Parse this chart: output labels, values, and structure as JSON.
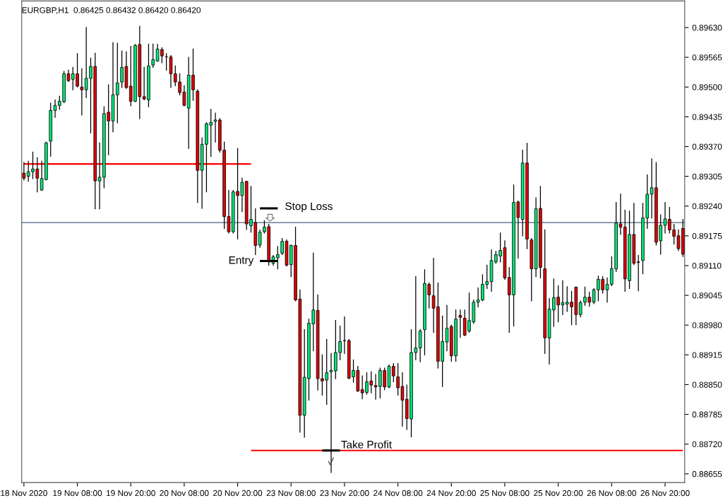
{
  "chart_data": {
    "type": "candlestick",
    "title": "EURGBP,H1  0.86425 0.86432 0.86420 0.86420",
    "categories": [
      "18 Nov 2020",
      null,
      null,
      null,
      null,
      null,
      null,
      null,
      null,
      null,
      null,
      null,
      "19 Nov 08:00",
      null,
      null,
      null,
      null,
      null,
      null,
      null,
      null,
      null,
      null,
      null,
      "19 Nov 20:00",
      null,
      null,
      null,
      null,
      null,
      null,
      null,
      null,
      null,
      null,
      null,
      "20 Nov 08:00",
      null,
      null,
      null,
      null,
      null,
      null,
      null,
      null,
      null,
      null,
      null,
      "20 Nov 20:00",
      null,
      null,
      null,
      null,
      null,
      null,
      null,
      null,
      null,
      null,
      null,
      "23 Nov 08:00",
      null,
      null,
      null,
      null,
      null,
      null,
      null,
      null,
      null,
      null,
      null,
      "23 Nov 20:00",
      null,
      null,
      null,
      null,
      null,
      null,
      null,
      null,
      null,
      null,
      null,
      "24 Nov 08:00",
      null,
      null,
      null,
      null,
      null,
      null,
      null,
      null,
      null,
      null,
      null,
      "24 Nov 20:00",
      null,
      null,
      null,
      null,
      null,
      null,
      null,
      null,
      null,
      null,
      null,
      "25 Nov 08:00",
      null,
      null,
      null,
      null,
      null,
      null,
      null,
      null,
      null,
      null,
      null,
      "25 Nov 20:00",
      null,
      null,
      null,
      null,
      null,
      null,
      null,
      null,
      null,
      null,
      null,
      "26 Nov 08:00",
      null,
      null,
      null,
      null,
      null,
      null,
      null,
      null,
      null,
      null,
      null,
      "26 Nov 20:00",
      null,
      null,
      null,
      null
    ],
    "colors": [
      "#e00000",
      "#00e676",
      "#00e676",
      "#e00000",
      "#00e676",
      "#00e676",
      "#00e676",
      "#00e676",
      "#00e676",
      "#00e676",
      "#e00000",
      "#00e676",
      "#e00000",
      "#e00000",
      "#00e676",
      "#00e676",
      "#e00000",
      "#00e676",
      "#00e676",
      "#e00000",
      "#00e676",
      "#00e676",
      "#00e676",
      "#e00000",
      "#e00000",
      "#00e676",
      "#e00000",
      "#e00000",
      "#00e676",
      "#00e676",
      "#00e676",
      "#e00000",
      "#000000",
      "#e00000",
      "#e00000",
      "#e00000",
      "#e00000",
      "#00e676",
      "#e00000",
      "#e00000",
      "#00e676",
      "#00e676",
      "#00e676",
      "#00e676",
      "#e00000",
      "#e00000",
      "#e00000",
      "#00e676",
      "#e00000",
      "#00e676",
      "#e00000",
      "#00e676",
      "#e00000",
      "#00e676",
      "#00e676",
      "#e00000",
      "#00e676",
      "#00e676",
      "#00e676",
      "#e00000",
      "#00e676",
      "#e00000",
      "#e00000",
      "#00e676",
      "#00e676",
      "#00e676",
      "#e00000",
      "#e00000",
      "#00e676",
      "#00e676",
      "#00e676",
      "#00e676",
      "#000000",
      "#e00000",
      "#00e676",
      "#e00000",
      "#e00000",
      "#00e676",
      "#e00000",
      "#e00000",
      "#00e676",
      "#e00000",
      "#00e676",
      "#e00000",
      "#e00000",
      "#e00000",
      "#e00000",
      "#00e676",
      "#00e676",
      "#00e676",
      "#00e676",
      "#e00000",
      "#e00000",
      "#e00000",
      "#00e676",
      "#00e676",
      "#e00000",
      "#00e676",
      "#e00000",
      "#e00000",
      "#00e676",
      "#00e676",
      "#00e676",
      "#00e676",
      "#00e676",
      "#00e676",
      "#00e676",
      "#00e676",
      "#e00000",
      "#e00000",
      "#00e676",
      "#e00000",
      "#00e676",
      "#e00000",
      "#e00000",
      "#00e676",
      "#e00000",
      "#e00000",
      "#00e676",
      "#00e676",
      "#e00000",
      "#00e676",
      "#00e676",
      "#e00000",
      "#e00000",
      "#00e676",
      "#00e676",
      "#e00000",
      "#00e676",
      "#00e676",
      "#e00000",
      "#00e676",
      "#00e676",
      "#00e676",
      "#e00000",
      "#e00000",
      "#00e676",
      "#e00000",
      "#e00000",
      "#00e676",
      "#00e676",
      "#00e676",
      "#e00000",
      "#00e676",
      "#00e676",
      "#e00000",
      "#e00000",
      "#e00000",
      "#e00000"
    ],
    "ohlc": [
      [
        0.89312,
        0.89335,
        0.89297,
        0.89301
      ],
      [
        0.89305,
        0.89338,
        0.89294,
        0.89315
      ],
      [
        0.89315,
        0.89358,
        0.893,
        0.89321
      ],
      [
        0.89321,
        0.89346,
        0.89271,
        0.89301
      ],
      [
        0.89275,
        0.89338,
        0.89274,
        0.893
      ],
      [
        0.89298,
        0.8938,
        0.89297,
        0.89378
      ],
      [
        0.89382,
        0.89465,
        0.89349,
        0.89449
      ],
      [
        0.89449,
        0.89472,
        0.89434,
        0.8946
      ],
      [
        0.8946,
        0.8948,
        0.89451,
        0.89469
      ],
      [
        0.89468,
        0.89534,
        0.89466,
        0.89529
      ],
      [
        0.89529,
        0.89537,
        0.89512,
        0.89514
      ],
      [
        0.89517,
        0.89543,
        0.89494,
        0.89529
      ],
      [
        0.89529,
        0.89573,
        0.895,
        0.89502
      ],
      [
        0.895,
        0.8954,
        0.89439,
        0.89494
      ],
      [
        0.89494,
        0.8963,
        0.89477,
        0.89519
      ],
      [
        0.89519,
        0.89563,
        0.894,
        0.89545
      ],
      [
        0.89545,
        0.89574,
        0.89234,
        0.89295
      ],
      [
        0.89295,
        0.89378,
        0.89234,
        0.89303
      ],
      [
        0.89303,
        0.89457,
        0.8928,
        0.89442
      ],
      [
        0.89445,
        0.89505,
        0.89352,
        0.89426
      ],
      [
        0.89426,
        0.89597,
        0.89402,
        0.89483
      ],
      [
        0.89483,
        0.89596,
        0.89422,
        0.89509
      ],
      [
        0.89511,
        0.89579,
        0.89499,
        0.89543
      ],
      [
        0.89545,
        0.89577,
        0.89497,
        0.89499
      ],
      [
        0.89502,
        0.89589,
        0.89459,
        0.89469
      ],
      [
        0.89469,
        0.89593,
        0.89468,
        0.89591
      ],
      [
        0.89593,
        0.89633,
        0.89431,
        0.89479
      ],
      [
        0.89479,
        0.89543,
        0.89472,
        0.89474
      ],
      [
        0.89472,
        0.89594,
        0.89457,
        0.89546
      ],
      [
        0.89548,
        0.89594,
        0.89543,
        0.8956
      ],
      [
        0.89557,
        0.89593,
        0.89556,
        0.89583
      ],
      [
        0.89582,
        0.89586,
        0.89553,
        0.89568
      ],
      [
        0.89566,
        0.89573,
        0.89537,
        0.89566
      ],
      [
        0.89566,
        0.89569,
        0.89499,
        0.89529
      ],
      [
        0.89529,
        0.89546,
        0.89503,
        0.89511
      ],
      [
        0.89511,
        0.89529,
        0.89483,
        0.89488
      ],
      [
        0.89489,
        0.89503,
        0.89459,
        0.8946
      ],
      [
        0.89454,
        0.89565,
        0.89366,
        0.89526
      ],
      [
        0.89526,
        0.89583,
        0.89471,
        0.89494
      ],
      [
        0.89491,
        0.89494,
        0.89248,
        0.89318
      ],
      [
        0.89318,
        0.89389,
        0.89235,
        0.89375
      ],
      [
        0.89375,
        0.89422,
        0.89271,
        0.8942
      ],
      [
        0.89417,
        0.89451,
        0.89348,
        0.89423
      ],
      [
        0.89425,
        0.89443,
        0.8938,
        0.89428
      ],
      [
        0.89428,
        0.89431,
        0.89358,
        0.89362
      ],
      [
        0.89362,
        0.8938,
        0.89191,
        0.89217
      ],
      [
        0.89217,
        0.89274,
        0.89181,
        0.89184
      ],
      [
        0.89184,
        0.89274,
        0.89181,
        0.89271
      ],
      [
        0.89272,
        0.89366,
        0.89168,
        0.89263
      ],
      [
        0.89263,
        0.89301,
        0.89228,
        0.89292
      ],
      [
        0.89294,
        0.89294,
        0.89189,
        0.89201
      ],
      [
        0.89197,
        0.89283,
        0.89183,
        0.89211
      ],
      [
        0.89204,
        0.89234,
        0.89134,
        0.89154
      ],
      [
        0.89155,
        0.89188,
        0.8915,
        0.89183
      ],
      [
        0.89184,
        0.89208,
        0.89181,
        0.89194
      ],
      [
        0.89195,
        0.892,
        0.89111,
        0.89118
      ],
      [
        0.89115,
        0.89132,
        0.89111,
        0.89129
      ],
      [
        0.89127,
        0.89152,
        0.89103,
        0.89134
      ],
      [
        0.89137,
        0.89169,
        0.89134,
        0.89163
      ],
      [
        0.89163,
        0.89166,
        0.89109,
        0.89111
      ],
      [
        0.89112,
        0.89155,
        0.89086,
        0.89154
      ],
      [
        0.89154,
        0.89194,
        0.89033,
        0.89035
      ],
      [
        0.89037,
        0.89057,
        0.88746,
        0.88783
      ],
      [
        0.88783,
        0.8897,
        0.88735,
        0.88866
      ],
      [
        0.88863,
        0.88993,
        0.88816,
        0.88984
      ],
      [
        0.88983,
        0.89137,
        0.88924,
        0.89013
      ],
      [
        0.89012,
        0.89046,
        0.88838,
        0.88863
      ],
      [
        0.88863,
        0.88915,
        0.88827,
        0.88858
      ],
      [
        0.8886,
        0.88949,
        0.88807,
        0.88876
      ],
      [
        0.88878,
        0.88918,
        0.88658,
        0.88881
      ],
      [
        0.8888,
        0.8899,
        0.88863,
        0.8892
      ],
      [
        0.8892,
        0.88978,
        0.88904,
        0.88944
      ],
      [
        0.88946,
        0.88998,
        0.88918,
        0.88946
      ],
      [
        0.88946,
        0.88949,
        0.88863,
        0.88864
      ],
      [
        0.88867,
        0.88904,
        0.88855,
        0.88881
      ],
      [
        0.88881,
        0.8889,
        0.88835,
        0.88836
      ],
      [
        0.88839,
        0.88869,
        0.88819,
        0.88832
      ],
      [
        0.88833,
        0.88876,
        0.88829,
        0.88856
      ],
      [
        0.88858,
        0.88878,
        0.88832,
        0.88849
      ],
      [
        0.88848,
        0.88872,
        0.88818,
        0.88845
      ],
      [
        0.88846,
        0.88886,
        0.88821,
        0.88881
      ],
      [
        0.88881,
        0.88886,
        0.88839,
        0.88845
      ],
      [
        0.88845,
        0.88893,
        0.88843,
        0.8889
      ],
      [
        0.8889,
        0.88896,
        0.88856,
        0.88869
      ],
      [
        0.88867,
        0.88896,
        0.88827,
        0.88843
      ],
      [
        0.88846,
        0.88876,
        0.88759,
        0.88816
      ],
      [
        0.88818,
        0.88849,
        0.88752,
        0.88776
      ],
      [
        0.88775,
        0.8897,
        0.88736,
        0.8892
      ],
      [
        0.8892,
        0.89086,
        0.88904,
        0.8893
      ],
      [
        0.8893,
        0.8897,
        0.889,
        0.88967
      ],
      [
        0.8897,
        0.89101,
        0.88915,
        0.89071
      ],
      [
        0.89069,
        0.89072,
        0.89017,
        0.89046
      ],
      [
        0.89044,
        0.89126,
        0.88964,
        0.89017
      ],
      [
        0.8902,
        0.89072,
        0.88886,
        0.88901
      ],
      [
        0.88901,
        0.89,
        0.88846,
        0.88944
      ],
      [
        0.88943,
        0.89023,
        0.88924,
        0.88973
      ],
      [
        0.88977,
        0.8898,
        0.88901,
        0.88913
      ],
      [
        0.88913,
        0.89013,
        0.88901,
        0.88993
      ],
      [
        0.89001,
        0.89013,
        0.88953,
        0.88997
      ],
      [
        0.88995,
        0.89013,
        0.88957,
        0.88958
      ],
      [
        0.88967,
        0.8905,
        0.88964,
        0.8899
      ],
      [
        0.88987,
        0.89035,
        0.88984,
        0.8903
      ],
      [
        0.8903,
        0.89061,
        0.8902,
        0.89035
      ],
      [
        0.89035,
        0.8909,
        0.89033,
        0.89069
      ],
      [
        0.89069,
        0.89111,
        0.8906,
        0.89075
      ],
      [
        0.89075,
        0.89144,
        0.89054,
        0.89121
      ],
      [
        0.89118,
        0.89141,
        0.89115,
        0.89134
      ],
      [
        0.89131,
        0.89181,
        0.89118,
        0.89143
      ],
      [
        0.89149,
        0.89164,
        0.8908,
        0.89083
      ],
      [
        0.89084,
        0.89106,
        0.88964,
        0.89046
      ],
      [
        0.89046,
        0.89286,
        0.88978,
        0.89248
      ],
      [
        0.89249,
        0.89251,
        0.89126,
        0.89215
      ],
      [
        0.89211,
        0.89362,
        0.89175,
        0.89334
      ],
      [
        0.89334,
        0.89377,
        0.89147,
        0.89168
      ],
      [
        0.89166,
        0.89169,
        0.89033,
        0.89103
      ],
      [
        0.89103,
        0.89258,
        0.89086,
        0.89234
      ],
      [
        0.89235,
        0.89283,
        0.89083,
        0.89106
      ],
      [
        0.89103,
        0.89188,
        0.88918,
        0.88952
      ],
      [
        0.88952,
        0.89038,
        0.88895,
        0.89015
      ],
      [
        0.89013,
        0.89081,
        0.88977,
        0.8904
      ],
      [
        0.89041,
        0.89066,
        0.88987,
        0.89024
      ],
      [
        0.89024,
        0.89077,
        0.89003,
        0.89029
      ],
      [
        0.89026,
        0.89064,
        0.8901,
        0.8903
      ],
      [
        0.8903,
        0.89054,
        0.88981,
        0.8902
      ],
      [
        0.89063,
        0.89063,
        0.88981,
        0.89003
      ],
      [
        0.89003,
        0.89033,
        0.88998,
        0.89029
      ],
      [
        0.8903,
        0.89063,
        0.89023,
        0.89041
      ],
      [
        0.89041,
        0.89052,
        0.89021,
        0.8903
      ],
      [
        0.8903,
        0.8906,
        0.89027,
        0.89057
      ],
      [
        0.89057,
        0.89087,
        0.89033,
        0.8908
      ],
      [
        0.8908,
        0.89086,
        0.8905,
        0.89057
      ],
      [
        0.89057,
        0.89083,
        0.8903,
        0.89069
      ],
      [
        0.89069,
        0.89129,
        0.89066,
        0.89103
      ],
      [
        0.89103,
        0.89248,
        0.89097,
        0.89203
      ],
      [
        0.89201,
        0.89266,
        0.89178,
        0.89194
      ],
      [
        0.89194,
        0.89231,
        0.89054,
        0.89081
      ],
      [
        0.89077,
        0.89229,
        0.8906,
        0.89178
      ],
      [
        0.89178,
        0.89246,
        0.89112,
        0.89115
      ],
      [
        0.89118,
        0.89132,
        0.89055,
        0.89117
      ],
      [
        0.89121,
        0.89246,
        0.89092,
        0.89214
      ],
      [
        0.89214,
        0.89308,
        0.89191,
        0.89266
      ],
      [
        0.89266,
        0.89343,
        0.89214,
        0.8928
      ],
      [
        0.8928,
        0.89335,
        0.89155,
        0.89161
      ],
      [
        0.89164,
        0.89221,
        0.89135,
        0.89198
      ],
      [
        0.89198,
        0.89248,
        0.89181,
        0.89212
      ],
      [
        0.89211,
        0.89237,
        0.89181,
        0.89188
      ],
      [
        0.89188,
        0.892,
        0.89157,
        0.89174
      ],
      [
        0.89175,
        0.89188,
        0.89143,
        0.89147
      ],
      [
        0.89191,
        0.89211,
        0.8913,
        0.89135
      ]
    ],
    "series": [
      {
        "type": "line",
        "color": "#ff0000",
        "values": [
          0.89332,
          0.89332,
          0.89332,
          0.89332,
          0.89332,
          0.89332,
          0.89332,
          0.89332,
          0.89332,
          0.89332,
          0.89332,
          0.89332,
          0.89332,
          0.89332,
          0.89332,
          0.89332,
          0.89332,
          0.89332,
          0.89332,
          0.89332,
          0.89332,
          0.89332,
          0.89332,
          0.89332,
          0.89332,
          0.89332,
          0.89332,
          0.89332,
          0.89332,
          0.89332,
          0.89332,
          0.89332,
          0.89332,
          0.89332,
          0.89332,
          0.89332,
          0.89332,
          0.89332,
          0.89332,
          0.89332,
          0.89332,
          0.89332,
          0.89332,
          0.89332,
          0.89332,
          0.89332,
          0.89332,
          0.89332,
          0.89332,
          0.89332,
          0.89332,
          0.89332,
          null,
          null,
          null,
          null,
          null,
          null,
          null,
          null,
          null,
          null,
          null,
          null,
          null,
          null,
          null,
          null,
          null,
          null,
          null,
          null,
          null,
          null,
          null,
          null,
          null,
          null,
          null,
          null,
          null,
          null,
          null,
          null,
          null,
          null,
          null,
          null,
          null,
          null,
          null,
          null,
          null,
          null,
          null,
          null,
          null,
          null,
          null,
          null,
          null,
          null,
          null,
          null,
          null,
          null,
          null,
          null,
          null,
          null,
          null,
          null,
          null,
          null,
          null,
          null,
          null,
          null,
          null,
          null,
          null,
          null,
          null,
          null,
          null,
          null,
          null,
          null,
          null,
          null,
          null,
          null,
          null,
          null,
          null,
          null,
          null,
          null,
          null,
          null,
          null,
          null,
          null,
          null,
          null,
          null,
          null,
          null,
          null
        ]
      },
      {
        "type": "line",
        "color": "#ff0000",
        "values": [
          null,
          null,
          null,
          null,
          null,
          null,
          null,
          null,
          null,
          null,
          null,
          null,
          null,
          null,
          null,
          null,
          null,
          null,
          null,
          null,
          null,
          null,
          null,
          null,
          null,
          null,
          null,
          null,
          null,
          null,
          null,
          null,
          null,
          null,
          null,
          null,
          null,
          null,
          null,
          null,
          null,
          null,
          null,
          null,
          null,
          null,
          null,
          null,
          null,
          null,
          null,
          0.88706,
          0.88706,
          0.88706,
          0.88706,
          0.88706,
          0.88706,
          0.88706,
          0.88706,
          0.88706,
          0.88706,
          0.88706,
          0.88706,
          0.88706,
          0.88706,
          0.88706,
          0.88706,
          0.88706,
          0.88706,
          0.88706,
          0.88706,
          0.88706,
          0.88706,
          0.88706,
          0.88706,
          0.88706,
          0.88706,
          0.88706,
          0.88706,
          0.88706,
          0.88706,
          0.88706,
          0.88706,
          0.88706,
          0.88706,
          0.88706,
          0.88706,
          0.88706,
          0.88706,
          0.88706,
          0.88706,
          0.88706,
          0.88706,
          0.88706,
          0.88706,
          0.88706,
          0.88706,
          0.88706,
          0.88706,
          0.88706,
          0.88706,
          0.88706,
          0.88706,
          0.88706,
          0.88706,
          0.88706,
          0.88706,
          0.88706,
          0.88706,
          0.88706,
          0.88706,
          0.88706,
          0.88706,
          0.88706,
          0.88706,
          0.88706,
          0.88706,
          0.88706,
          0.88706,
          0.88706,
          0.88706,
          0.88706,
          0.88706,
          0.88706,
          0.88706,
          0.88706,
          0.88706,
          0.88706,
          0.88706,
          0.88706,
          0.88706,
          0.88706,
          0.88706,
          0.88706,
          0.88706,
          0.88706,
          0.88706,
          0.88706,
          0.88706,
          0.88706,
          0.88706,
          0.88706,
          0.88706,
          0.88706,
          0.88706,
          0.88706,
          0.88706,
          0.88706,
          0.88706
        ]
      },
      {
        "type": "line",
        "color": "#000000",
        "values": [
          null,
          null,
          null,
          null,
          null,
          null,
          null,
          null,
          null,
          null,
          null,
          null,
          null,
          null,
          null,
          null,
          null,
          null,
          null,
          null,
          null,
          null,
          null,
          null,
          null,
          null,
          null,
          null,
          null,
          null,
          null,
          null,
          null,
          null,
          null,
          null,
          null,
          null,
          null,
          null,
          null,
          null,
          null,
          null,
          null,
          null,
          null,
          null,
          null,
          null,
          null,
          null,
          null,
          0.89235,
          0.89235,
          0.89235,
          0.89235,
          0.89235,
          null,
          null,
          null,
          null,
          null,
          null,
          null,
          null,
          null,
          null,
          null,
          null,
          null,
          null,
          null,
          null,
          null,
          null,
          null,
          null,
          null,
          null,
          null,
          null,
          null,
          null,
          null,
          null,
          null,
          null,
          null,
          null,
          null,
          null,
          null,
          null,
          null,
          null,
          null,
          null,
          null,
          null,
          null,
          null,
          null,
          null,
          null,
          null,
          null,
          null,
          null,
          null,
          null,
          null,
          null,
          null,
          null,
          null,
          null,
          null,
          null,
          null,
          null,
          null,
          null,
          null,
          null,
          null,
          null,
          null,
          null,
          null,
          null,
          null,
          null,
          null,
          null,
          null,
          null,
          null,
          null,
          null,
          null,
          null,
          null,
          null,
          null,
          null,
          null,
          null,
          null
        ]
      },
      {
        "type": "line",
        "color": "#000000",
        "values": [
          null,
          null,
          null,
          null,
          null,
          null,
          null,
          null,
          null,
          null,
          null,
          null,
          null,
          null,
          null,
          null,
          null,
          null,
          null,
          null,
          null,
          null,
          null,
          null,
          null,
          null,
          null,
          null,
          null,
          null,
          null,
          null,
          null,
          null,
          null,
          null,
          null,
          null,
          null,
          null,
          null,
          null,
          null,
          null,
          null,
          null,
          null,
          null,
          null,
          null,
          null,
          null,
          null,
          0.8912,
          0.8912,
          0.8912,
          0.8912,
          0.8912,
          null,
          null,
          null,
          null,
          null,
          null,
          null,
          null,
          null,
          null,
          null,
          null,
          null,
          null,
          null,
          null,
          null,
          null,
          null,
          null,
          null,
          null,
          null,
          null,
          null,
          null,
          null,
          null,
          null,
          null,
          null,
          null,
          null,
          null,
          null,
          null,
          null,
          null,
          null,
          null,
          null,
          null,
          null,
          null,
          null,
          null,
          null,
          null,
          null,
          null,
          null,
          null,
          null,
          null,
          null,
          null,
          null,
          null,
          null,
          null,
          null,
          null,
          null,
          null,
          null,
          null,
          null,
          null,
          null,
          null,
          null,
          null,
          null,
          null,
          null,
          null,
          null,
          null,
          null,
          null,
          null,
          null,
          null,
          null,
          null,
          null,
          null,
          null,
          null,
          null,
          null
        ]
      },
      {
        "type": "line",
        "color": "#000000",
        "values": [
          null,
          null,
          null,
          null,
          null,
          null,
          null,
          null,
          null,
          null,
          null,
          null,
          null,
          null,
          null,
          null,
          null,
          null,
          null,
          null,
          null,
          null,
          null,
          null,
          null,
          null,
          null,
          null,
          null,
          null,
          null,
          null,
          null,
          null,
          null,
          null,
          null,
          null,
          null,
          null,
          null,
          null,
          null,
          null,
          null,
          null,
          null,
          null,
          null,
          null,
          null,
          null,
          null,
          null,
          null,
          null,
          null,
          null,
          null,
          null,
          null,
          null,
          null,
          null,
          null,
          null,
          null,
          0.88706,
          0.88706,
          0.88706,
          0.88706,
          0.88706,
          null,
          null,
          null,
          null,
          null,
          null,
          null,
          null,
          null,
          null,
          null,
          null,
          null,
          null,
          null,
          null,
          null,
          null,
          null,
          null,
          null,
          null,
          null,
          null,
          null,
          null,
          null,
          null,
          null,
          null,
          null,
          null,
          null,
          null,
          null,
          null,
          null,
          null,
          null,
          null,
          null,
          null,
          null,
          null,
          null,
          null,
          null,
          null,
          null,
          null,
          null,
          null,
          null,
          null,
          null,
          null,
          null,
          null,
          null,
          null,
          null,
          null,
          null,
          null,
          null,
          null,
          null,
          null,
          null,
          null,
          null,
          null,
          null,
          null,
          null,
          null,
          null
        ]
      }
    ],
    "ref_lines": [
      {
        "axis": "y",
        "value": 0.89204,
        "color": "#7f8fa6"
      }
    ],
    "annotations": [
      "Stop Loss",
      "Entry",
      "Take Profit"
    ],
    "ylim": [
      0.88636,
      0.89688
    ],
    "yticks": [
      {
        "value": 0.88655,
        "label": "0.88655"
      },
      {
        "value": 0.8872,
        "label": "0.88720"
      },
      {
        "value": 0.88785,
        "label": "0.88785"
      },
      {
        "value": 0.8885,
        "label": "0.88850"
      },
      {
        "value": 0.88915,
        "label": "0.88915"
      },
      {
        "value": 0.8898,
        "label": "0.88980"
      },
      {
        "value": 0.89045,
        "label": "0.89045"
      },
      {
        "value": 0.8911,
        "label": "0.89110"
      },
      {
        "value": 0.89175,
        "label": "0.89175"
      },
      {
        "value": 0.8924,
        "label": "0.89240"
      },
      {
        "value": 0.89305,
        "label": "0.89305"
      },
      {
        "value": 0.8937,
        "label": "0.89370"
      },
      {
        "value": 0.89435,
        "label": "0.89435"
      },
      {
        "value": 0.895,
        "label": "0.89500"
      },
      {
        "value": 0.89565,
        "label": "0.89565"
      },
      {
        "value": 0.8963,
        "label": "0.89630"
      }
    ],
    "grid": false,
    "legend": false
  }
}
